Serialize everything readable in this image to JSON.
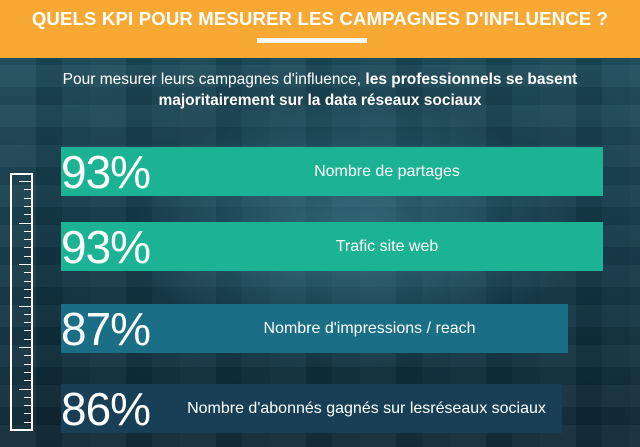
{
  "header": {
    "title": "QUELS KPI POUR MESURER LES CAMPAGNES D'INFLUENCE ?",
    "bg_color": "#f7a933"
  },
  "subtitle": {
    "normal": "Pour mesurer leurs campagnes d'influence, ",
    "bold_line1": "les professionnels se basent",
    "bold_line2": "majoritairement sur la data réseaux sociaux"
  },
  "decoration": {
    "icon": "ruler-icon"
  },
  "chart_data": {
    "type": "bar",
    "orientation": "horizontal",
    "unit": "%",
    "categories": [
      "Nombre de partages",
      "Trafic site web",
      "Nombre d'impressions / reach",
      "Nombre d'abonnés gagnés sur les réseaux sociaux"
    ],
    "values": [
      93,
      93,
      87,
      86
    ],
    "value_labels": [
      "93%",
      "93%",
      "87%",
      "86%"
    ],
    "label_lines": [
      [
        "Nombre de partages"
      ],
      [
        "Trafic site web"
      ],
      [
        "Nombre d'impressions / reach"
      ],
      [
        "Nombre d'abonnés gagnés sur les",
        "réseaux sociaux"
      ]
    ],
    "colors": [
      "#1bb394",
      "#1bb394",
      "#1a6e86",
      "#183f55"
    ]
  }
}
